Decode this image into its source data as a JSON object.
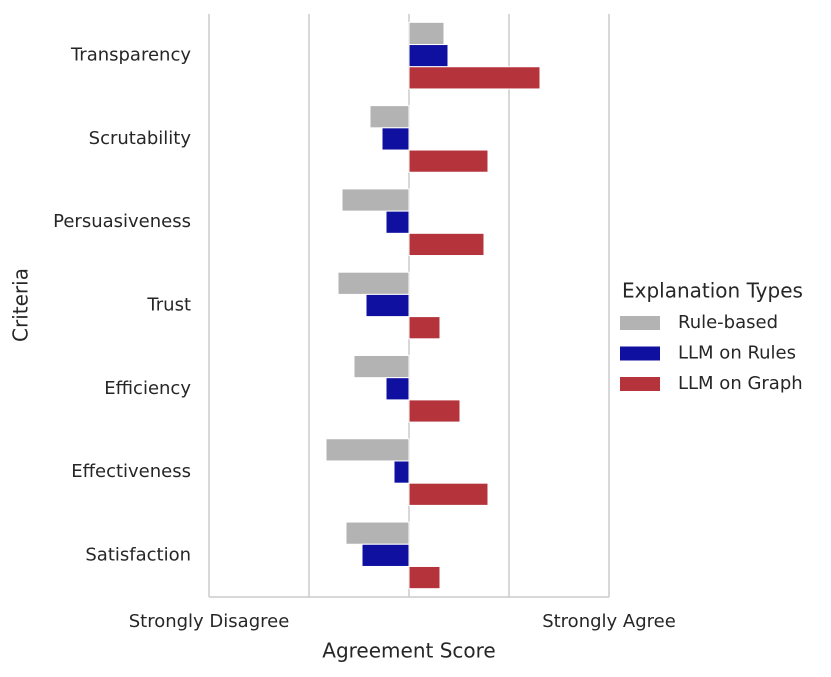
{
  "chart_data": {
    "type": "barh",
    "categories": [
      "Transparency",
      "Scrutability",
      "Persuasiveness",
      "Trust",
      "Efficiency",
      "Effectiveness",
      "Satisfaction"
    ],
    "series": [
      {
        "name": "Rule-based",
        "color": "#b3b3b3",
        "values": [
          0.35,
          -0.39,
          -0.67,
          -0.71,
          -0.55,
          -0.83,
          -0.63
        ]
      },
      {
        "name": "LLM on Rules",
        "color": "#1010a0",
        "values": [
          0.39,
          -0.27,
          -0.23,
          -0.43,
          -0.23,
          -0.15,
          -0.47
        ]
      },
      {
        "name": "LLM on Graph",
        "color": "#b5343c",
        "values": [
          1.31,
          0.79,
          0.75,
          0.31,
          0.51,
          0.79,
          0.31
        ]
      }
    ],
    "xlim": [
      -2,
      2
    ],
    "xticks": [
      {
        "value": -2,
        "label": "Strongly Disagree"
      },
      {
        "value": -1,
        "label": null
      },
      {
        "value": 0,
        "label": null
      },
      {
        "value": 1,
        "label": null
      },
      {
        "value": 2,
        "label": "Strongly Agree"
      }
    ],
    "xlabel": "Agreement Score",
    "ylabel": "Criteria",
    "legend_title": "Explanation Types",
    "legend_position": "right",
    "grid": true
  }
}
